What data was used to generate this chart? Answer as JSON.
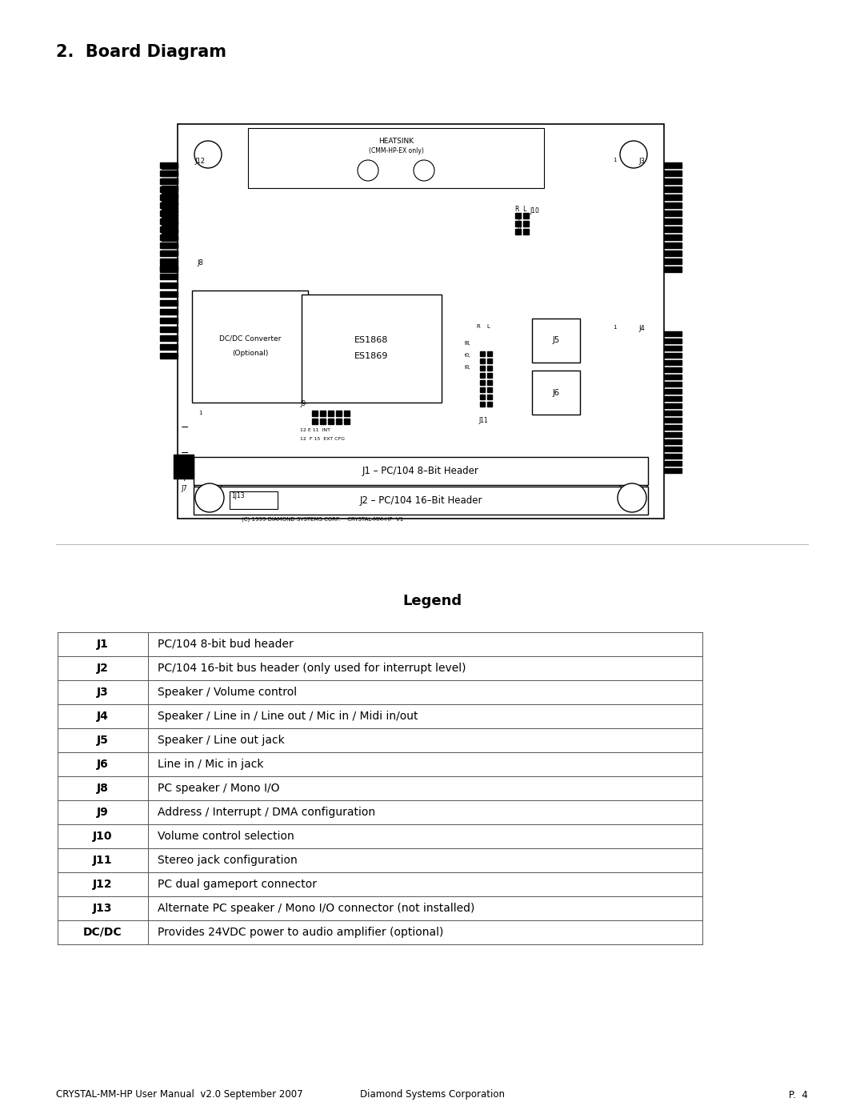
{
  "title": "2.  Board Diagram",
  "legend_title": "Legend",
  "legend_rows": [
    [
      "J1",
      "PC/104 8-bit bud header"
    ],
    [
      "J2",
      "PC/104 16-bit bus header (only used for interrupt level)"
    ],
    [
      "J3",
      "Speaker / Volume control"
    ],
    [
      "J4",
      "Speaker / Line in / Line out / Mic in / Midi in/out"
    ],
    [
      "J5",
      "Speaker / Line out jack"
    ],
    [
      "J6",
      "Line in / Mic in jack"
    ],
    [
      "J8",
      "PC speaker / Mono I/O"
    ],
    [
      "J9",
      "Address / Interrupt / DMA configuration"
    ],
    [
      "J10",
      "Volume control selection"
    ],
    [
      "J11",
      "Stereo jack configuration"
    ],
    [
      "J12",
      "PC dual gameport connector"
    ],
    [
      "J13",
      "Alternate PC speaker / Mono I/O connector (not installed)"
    ],
    [
      "DC/DC",
      "Provides 24VDC power to audio amplifier (optional)"
    ]
  ],
  "footer_left": "CRYSTAL-MM-HP User Manual  v2.0 September 2007",
  "footer_center": "Diamond Systems Corporation",
  "footer_right": "P.  4",
  "bg_color": "#ffffff"
}
